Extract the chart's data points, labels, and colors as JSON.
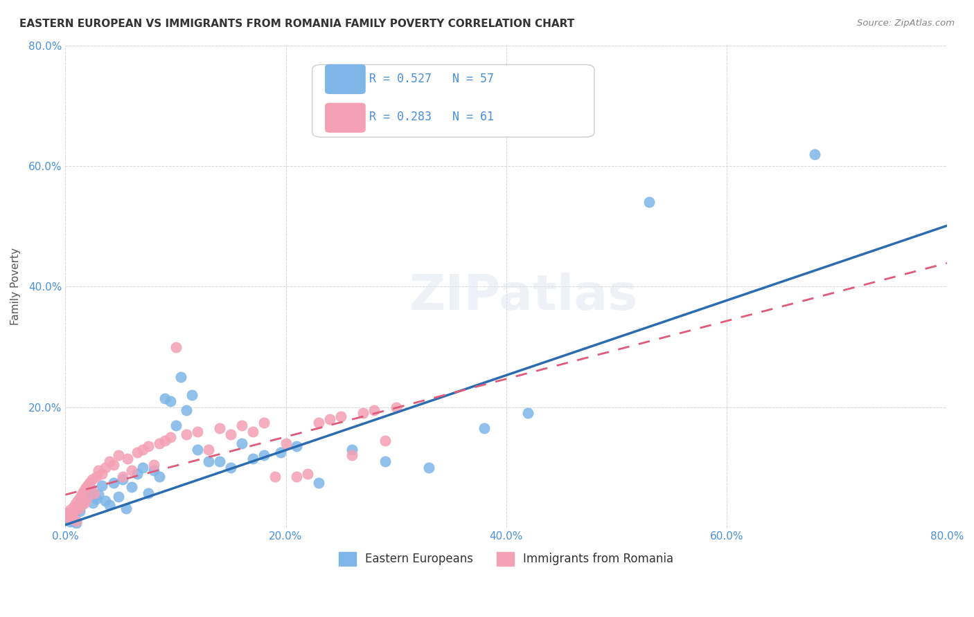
{
  "title": "EASTERN EUROPEAN VS IMMIGRANTS FROM ROMANIA FAMILY POVERTY CORRELATION CHART",
  "source": "Source: ZipAtlas.com",
  "xlabel": "",
  "ylabel": "Family Poverty",
  "xlim": [
    0.0,
    0.8
  ],
  "ylim": [
    0.0,
    0.8
  ],
  "xticks": [
    0.0,
    0.2,
    0.4,
    0.6,
    0.8
  ],
  "yticks": [
    0.0,
    0.2,
    0.4,
    0.6,
    0.8
  ],
  "xticklabels": [
    "0.0%",
    "20.0%",
    "40.0%",
    "60.0%",
    "80.0%"
  ],
  "yticklabels": [
    "",
    "20.0%",
    "40.0%",
    "60.0%",
    "80.0%"
  ],
  "blue_color": "#7eb6e8",
  "pink_color": "#f4a0b5",
  "blue_line_color": "#2b6cb0",
  "pink_line_color": "#e05a7a",
  "R_blue": 0.527,
  "N_blue": 57,
  "R_pink": 0.283,
  "N_pink": 61,
  "legend_labels": [
    "Eastern Europeans",
    "Immigrants from Romania"
  ],
  "watermark": "ZIPatlas",
  "blue_x": [
    0.002,
    0.003,
    0.004,
    0.005,
    0.006,
    0.007,
    0.008,
    0.009,
    0.01,
    0.011,
    0.012,
    0.013,
    0.014,
    0.015,
    0.017,
    0.019,
    0.021,
    0.023,
    0.025,
    0.028,
    0.03,
    0.033,
    0.036,
    0.04,
    0.044,
    0.048,
    0.052,
    0.055,
    0.06,
    0.065,
    0.07,
    0.075,
    0.08,
    0.085,
    0.09,
    0.095,
    0.1,
    0.105,
    0.11,
    0.115,
    0.12,
    0.13,
    0.14,
    0.15,
    0.16,
    0.17,
    0.18,
    0.195,
    0.21,
    0.23,
    0.26,
    0.29,
    0.33,
    0.38,
    0.42,
    0.53,
    0.68
  ],
  "blue_y": [
    0.02,
    0.015,
    0.01,
    0.025,
    0.012,
    0.018,
    0.022,
    0.03,
    0.008,
    0.035,
    0.04,
    0.028,
    0.045,
    0.038,
    0.05,
    0.055,
    0.06,
    0.065,
    0.042,
    0.048,
    0.055,
    0.07,
    0.045,
    0.038,
    0.075,
    0.052,
    0.08,
    0.032,
    0.068,
    0.09,
    0.1,
    0.058,
    0.095,
    0.085,
    0.215,
    0.21,
    0.17,
    0.25,
    0.195,
    0.22,
    0.13,
    0.11,
    0.11,
    0.1,
    0.14,
    0.115,
    0.12,
    0.125,
    0.135,
    0.075,
    0.13,
    0.11,
    0.1,
    0.165,
    0.19,
    0.54,
    0.62
  ],
  "pink_x": [
    0.001,
    0.002,
    0.003,
    0.004,
    0.005,
    0.006,
    0.007,
    0.008,
    0.009,
    0.01,
    0.011,
    0.012,
    0.013,
    0.014,
    0.015,
    0.016,
    0.017,
    0.018,
    0.019,
    0.02,
    0.022,
    0.024,
    0.026,
    0.028,
    0.03,
    0.033,
    0.036,
    0.04,
    0.044,
    0.048,
    0.052,
    0.056,
    0.06,
    0.065,
    0.07,
    0.075,
    0.08,
    0.085,
    0.09,
    0.095,
    0.1,
    0.11,
    0.12,
    0.13,
    0.14,
    0.15,
    0.16,
    0.17,
    0.18,
    0.19,
    0.2,
    0.21,
    0.22,
    0.23,
    0.24,
    0.25,
    0.26,
    0.27,
    0.28,
    0.29,
    0.3
  ],
  "pink_y": [
    0.02,
    0.025,
    0.018,
    0.03,
    0.015,
    0.022,
    0.035,
    0.028,
    0.04,
    0.012,
    0.045,
    0.032,
    0.05,
    0.038,
    0.055,
    0.06,
    0.042,
    0.065,
    0.048,
    0.07,
    0.075,
    0.08,
    0.058,
    0.085,
    0.095,
    0.09,
    0.1,
    0.11,
    0.105,
    0.12,
    0.085,
    0.115,
    0.095,
    0.125,
    0.13,
    0.135,
    0.105,
    0.14,
    0.145,
    0.15,
    0.3,
    0.155,
    0.16,
    0.13,
    0.165,
    0.155,
    0.17,
    0.16,
    0.175,
    0.085,
    0.14,
    0.085,
    0.09,
    0.175,
    0.18,
    0.185,
    0.12,
    0.19,
    0.195,
    0.145,
    0.2
  ]
}
